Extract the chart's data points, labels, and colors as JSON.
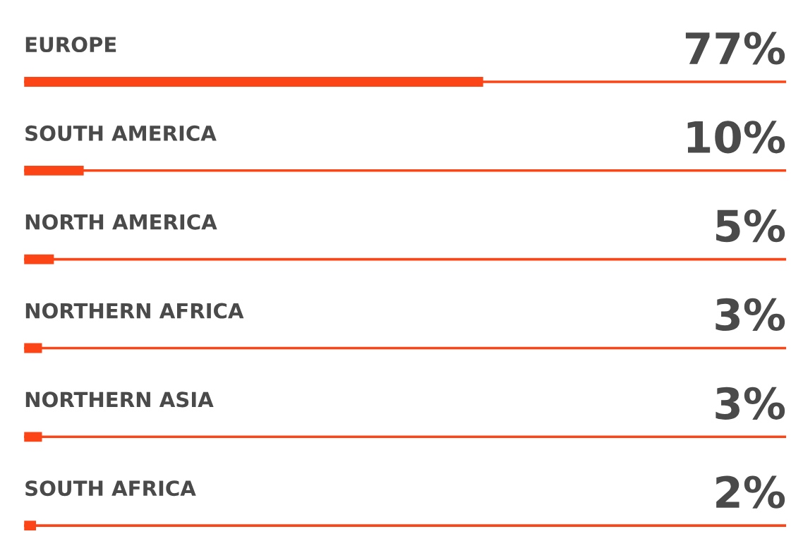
{
  "chart_data": {
    "type": "bar",
    "orientation": "horizontal",
    "categories": [
      "EUROPE",
      "SOUTH AMERICA",
      "NORTH AMERICA",
      "NORTHERN AFRICA",
      "NORTHERN ASIA",
      "SOUTH AFRICA"
    ],
    "values": [
      77,
      10,
      5,
      3,
      3,
      2
    ],
    "value_labels": [
      "77%",
      "10%",
      "5%",
      "3%",
      "3%",
      "2%"
    ],
    "color": "#fc4516",
    "grid": "y",
    "legend": false
  }
}
